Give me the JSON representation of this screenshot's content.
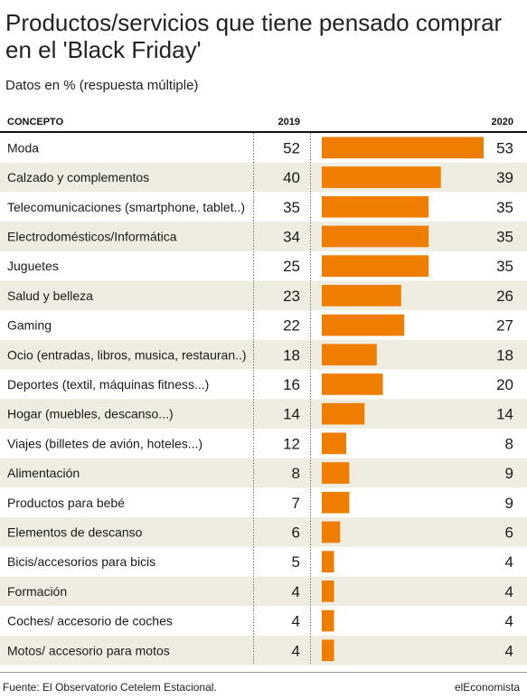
{
  "chart_data": {
    "type": "bar",
    "title": "Productos/servicios que tiene pensado comprar en el 'Black Friday'",
    "subtitle": "Datos en % (respuesta múltiple)",
    "headers": {
      "concept": "CONCEPTO",
      "col2019": "2019",
      "col2020": "2020"
    },
    "categories": [
      "Moda",
      "Calzado y complementos",
      "Telecomunicaciones (smartphone, tablet..)",
      "Electrodomésticos/Informática",
      "Juguetes",
      "Salud y belleza",
      "Gaming",
      "Ocio (entradas, libros, musica, restauran..)",
      "Deportes (textil, máquinas fitness...)",
      "Hogar (muebles, descanso...)",
      "Viajes (billetes de avión, hoteles...)",
      "Alimentación",
      "Productos para bebé",
      "Elementos de descanso",
      "Bicis/accesorios para bicis",
      "Formación",
      "Coches/ accesorio de coches",
      "Motos/ accesorio para motos"
    ],
    "series": [
      {
        "name": "2019",
        "values": [
          52,
          40,
          35,
          34,
          25,
          23,
          22,
          18,
          16,
          14,
          12,
          8,
          7,
          6,
          5,
          4,
          4,
          4
        ]
      },
      {
        "name": "2020",
        "values": [
          53,
          39,
          35,
          35,
          35,
          26,
          27,
          18,
          20,
          14,
          8,
          9,
          9,
          6,
          4,
          4,
          4,
          4
        ]
      }
    ],
    "bar_series": "2020",
    "colors": {
      "bar": "#ee7d00",
      "stripe": "#efede1",
      "text": "#1a1a1a"
    },
    "source": "Fuente: El Observatorio Cetelem Estacional.",
    "brand": "elEconomista"
  }
}
